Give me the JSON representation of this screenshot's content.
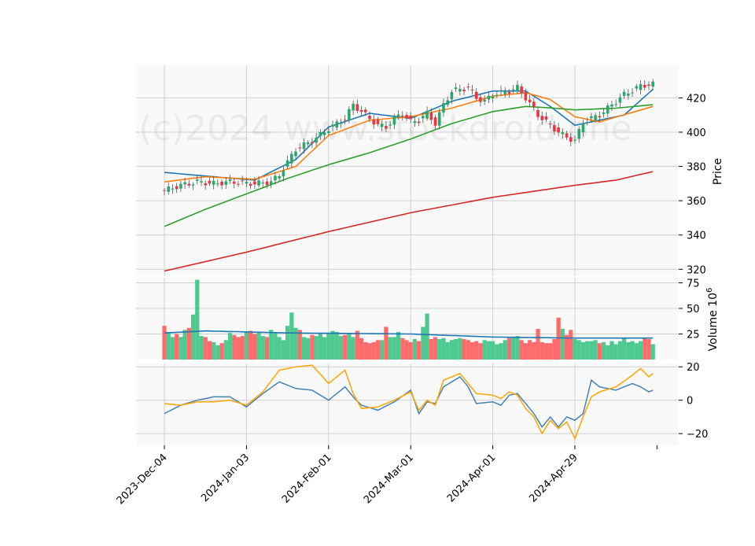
{
  "chart_data": {
    "type": "candlestick",
    "watermark": "(c)2024 www.stockdroid.one",
    "x_ticks": [
      "2023-Dec-04",
      "2024-Jan-03",
      "2024-Feb-01",
      "2024-Mar-01",
      "2024-Apr-01",
      "2024-Apr-29"
    ],
    "x_tick_index": [
      0,
      20,
      40,
      60,
      80,
      100
    ],
    "n_points": 120,
    "price_panel": {
      "ylabel": "Price",
      "yticks": [
        320,
        340,
        360,
        380,
        400,
        420
      ],
      "ylim": [
        316,
        439
      ],
      "ma_colors": [
        "#1f77b4",
        "#ff7f0e",
        "#2ca02c",
        "#d62728"
      ],
      "ma_anchors": [
        [
          [
            0,
            376.5
          ],
          [
            12,
            374
          ],
          [
            22,
            372
          ],
          [
            32,
            384
          ],
          [
            40,
            403
          ],
          [
            50,
            411
          ],
          [
            60,
            408
          ],
          [
            70,
            418
          ],
          [
            80,
            424
          ],
          [
            88,
            424
          ],
          [
            94,
            415
          ],
          [
            100,
            404
          ],
          [
            112,
            410
          ],
          [
            119,
            425
          ]
        ],
        [
          [
            0,
            371
          ],
          [
            10,
            374
          ],
          [
            22,
            372.5
          ],
          [
            32,
            380
          ],
          [
            40,
            398
          ],
          [
            50,
            407
          ],
          [
            60,
            409
          ],
          [
            70,
            414
          ],
          [
            80,
            421
          ],
          [
            88,
            423
          ],
          [
            94,
            419
          ],
          [
            100,
            409
          ],
          [
            106,
            406
          ],
          [
            119,
            415
          ]
        ],
        [
          [
            0,
            345
          ],
          [
            10,
            355
          ],
          [
            20,
            364
          ],
          [
            30,
            373
          ],
          [
            40,
            381
          ],
          [
            50,
            388
          ],
          [
            60,
            396
          ],
          [
            70,
            405
          ],
          [
            80,
            412
          ],
          [
            88,
            415
          ],
          [
            95,
            414
          ],
          [
            100,
            413
          ],
          [
            110,
            414
          ],
          [
            119,
            416
          ]
        ],
        [
          [
            0,
            319
          ],
          [
            20,
            330
          ],
          [
            40,
            342
          ],
          [
            60,
            353
          ],
          [
            80,
            362
          ],
          [
            100,
            369
          ],
          [
            110,
            372
          ],
          [
            119,
            377
          ]
        ]
      ],
      "close_anchors": [
        [
          0,
          366
        ],
        [
          4,
          369
        ],
        [
          8,
          371
        ],
        [
          12,
          370
        ],
        [
          16,
          371
        ],
        [
          22,
          370
        ],
        [
          26,
          371
        ],
        [
          28,
          375
        ],
        [
          32,
          390
        ],
        [
          36,
          395
        ],
        [
          40,
          402
        ],
        [
          44,
          408
        ],
        [
          46,
          416
        ],
        [
          50,
          408
        ],
        [
          52,
          404
        ],
        [
          54,
          403
        ],
        [
          56,
          408
        ],
        [
          58,
          411
        ],
        [
          60,
          406
        ],
        [
          62,
          407
        ],
        [
          64,
          411
        ],
        [
          66,
          405
        ],
        [
          68,
          416
        ],
        [
          70,
          424
        ],
        [
          74,
          426
        ],
        [
          76,
          420
        ],
        [
          78,
          418
        ],
        [
          80,
          422
        ],
        [
          84,
          424
        ],
        [
          86,
          426
        ],
        [
          88,
          420
        ],
        [
          91,
          410
        ],
        [
          94,
          404
        ],
        [
          96,
          400
        ],
        [
          98,
          397
        ],
        [
          100,
          395
        ],
        [
          102,
          406
        ],
        [
          106,
          410
        ],
        [
          108,
          414
        ],
        [
          112,
          422
        ],
        [
          116,
          427
        ],
        [
          119,
          428
        ]
      ],
      "up_color": "#26a96a",
      "down_color": "#ef3340"
    },
    "volume_panel": {
      "ylabel": "Volume  10^6",
      "yticks": [
        25,
        50,
        75
      ],
      "ylim": [
        0,
        80
      ],
      "values": [
        33,
        27,
        22,
        25,
        22,
        29,
        31,
        44,
        78,
        23,
        22,
        18,
        17,
        14,
        16,
        19,
        26,
        24,
        22,
        23,
        27,
        28,
        25,
        27,
        23,
        22,
        29,
        26,
        22,
        19,
        33,
        46,
        31,
        29,
        22,
        21,
        24,
        23,
        26,
        22,
        26,
        28,
        27,
        23,
        24,
        26,
        22,
        28,
        21,
        17,
        16,
        17,
        19,
        19,
        32,
        22,
        22,
        27,
        21,
        19,
        17,
        20,
        18,
        32,
        45,
        20,
        22,
        20,
        21,
        17,
        19,
        20,
        21,
        20,
        19,
        17,
        18,
        16,
        19,
        18,
        18,
        15,
        16,
        19,
        21,
        22,
        23,
        19,
        16,
        19,
        17,
        30,
        17,
        16,
        16,
        20,
        41,
        30,
        24,
        29,
        20,
        19,
        17,
        18,
        18,
        19,
        16,
        17,
        14,
        18,
        15,
        18,
        21,
        17,
        18,
        16,
        18,
        21,
        20,
        15
      ],
      "ma_values_anchors": [
        [
          0,
          26
        ],
        [
          10,
          28
        ],
        [
          30,
          26
        ],
        [
          60,
          25
        ],
        [
          80,
          22
        ],
        [
          100,
          21
        ],
        [
          119,
          21
        ]
      ],
      "ma_color": "#1f77b4"
    },
    "osc_panel": {
      "yticks": [
        -20,
        0,
        20
      ],
      "ylim": [
        -27,
        22
      ],
      "series": [
        {
          "color": "#4682b4",
          "anchors": [
            [
              0,
              -8
            ],
            [
              4,
              -3
            ],
            [
              8,
              0
            ],
            [
              12,
              2
            ],
            [
              16,
              2
            ],
            [
              20,
              -4
            ],
            [
              24,
              4
            ],
            [
              28,
              11
            ],
            [
              32,
              7
            ],
            [
              36,
              6
            ],
            [
              40,
              0
            ],
            [
              44,
              8
            ],
            [
              46,
              2
            ],
            [
              48,
              -3
            ],
            [
              52,
              -6
            ],
            [
              56,
              -1
            ],
            [
              60,
              6
            ],
            [
              62,
              -8
            ],
            [
              64,
              -1
            ],
            [
              66,
              -2
            ],
            [
              68,
              8
            ],
            [
              72,
              14
            ],
            [
              74,
              8
            ],
            [
              76,
              -2
            ],
            [
              80,
              -1
            ],
            [
              82,
              -3
            ],
            [
              84,
              3
            ],
            [
              86,
              4
            ],
            [
              88,
              -2
            ],
            [
              90,
              -8
            ],
            [
              92,
              -16
            ],
            [
              94,
              -10
            ],
            [
              96,
              -16
            ],
            [
              98,
              -10
            ],
            [
              100,
              -12
            ],
            [
              102,
              -8
            ],
            [
              104,
              12
            ],
            [
              106,
              8
            ],
            [
              110,
              6
            ],
            [
              114,
              10
            ],
            [
              116,
              8
            ],
            [
              118,
              5
            ],
            [
              119,
              6
            ]
          ]
        },
        {
          "color": "#ffa500",
          "anchors": [
            [
              0,
              -2
            ],
            [
              4,
              -3
            ],
            [
              8,
              -1
            ],
            [
              12,
              -1
            ],
            [
              16,
              0
            ],
            [
              20,
              -3
            ],
            [
              24,
              5
            ],
            [
              28,
              18
            ],
            [
              32,
              20
            ],
            [
              36,
              21
            ],
            [
              40,
              10
            ],
            [
              44,
              18
            ],
            [
              46,
              4
            ],
            [
              48,
              -5
            ],
            [
              52,
              -4
            ],
            [
              56,
              0
            ],
            [
              60,
              5
            ],
            [
              62,
              -6
            ],
            [
              64,
              0
            ],
            [
              66,
              -3
            ],
            [
              68,
              12
            ],
            [
              72,
              16
            ],
            [
              74,
              10
            ],
            [
              76,
              4
            ],
            [
              80,
              3
            ],
            [
              82,
              1
            ],
            [
              84,
              5
            ],
            [
              86,
              3
            ],
            [
              88,
              -5
            ],
            [
              90,
              -10
            ],
            [
              92,
              -20
            ],
            [
              94,
              -12
            ],
            [
              96,
              -17
            ],
            [
              98,
              -13
            ],
            [
              100,
              -23
            ],
            [
              102,
              -10
            ],
            [
              104,
              2
            ],
            [
              106,
              5
            ],
            [
              110,
              8
            ],
            [
              114,
              15
            ],
            [
              116,
              19
            ],
            [
              118,
              14
            ],
            [
              119,
              16
            ]
          ]
        }
      ]
    }
  }
}
